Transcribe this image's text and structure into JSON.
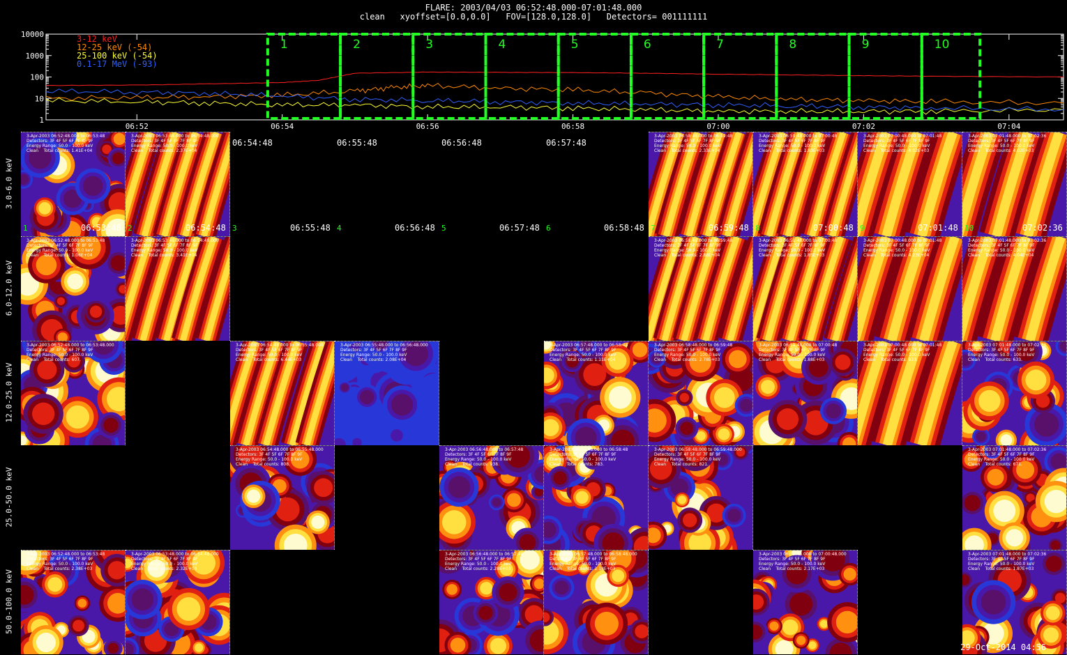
{
  "header": {
    "line1": "FLARE: 2003/04/03 06:52:48.000-07:01:48.000",
    "line2": "clean   xyoffset=[0.0,0.0]   FOV=[128.0,128.0]   Detectors= 001111111"
  },
  "chart_data": [
    {
      "type": "line",
      "yscale": "log",
      "ylim": [
        1,
        10000
      ],
      "y_ticks": [
        "1",
        "10",
        "100",
        "1000",
        "10000"
      ],
      "x_ticks": [
        "06:52",
        "06:54",
        "06:56",
        "06:58",
        "07:00",
        "07:02",
        "07:04"
      ],
      "x_range": [
        "06:50:45",
        "07:04:45"
      ],
      "legend_position": "top-left",
      "series": [
        {
          "name": "3-12 keV",
          "color": "#ff2020",
          "x": [
            "06:50:45",
            "06:52:00",
            "06:53:00",
            "06:54:00",
            "06:54:30",
            "06:55:00",
            "06:56:00",
            "06:57:00",
            "06:58:00",
            "06:59:00",
            "07:00:00",
            "07:01:00",
            "07:02:00",
            "07:03:00",
            "07:04:45"
          ],
          "values": [
            40,
            42,
            48,
            55,
            70,
            150,
            170,
            165,
            160,
            150,
            135,
            125,
            115,
            108,
            100
          ]
        },
        {
          "name": "12-25 keV (-54)",
          "color": "#ff8a00",
          "x": [
            "06:50:45",
            "06:52:00",
            "06:53:00",
            "06:54:00",
            "06:55:00",
            "06:55:30",
            "06:56:00",
            "06:57:00",
            "06:58:00",
            "06:59:00",
            "07:00:00",
            "07:01:00",
            "07:02:00",
            "07:03:00",
            "07:04:45"
          ],
          "values": [
            10,
            11,
            12,
            14,
            22,
            32,
            40,
            30,
            25,
            18,
            12,
            9,
            8,
            7,
            6
          ]
        },
        {
          "name": "25-100 keV (-54)",
          "color": "#ffff30",
          "x": [
            "06:50:45",
            "06:52:00",
            "06:53:00",
            "06:54:00",
            "06:55:00",
            "06:56:00",
            "06:57:00",
            "06:58:00",
            "06:59:00",
            "07:00:00",
            "07:01:00",
            "07:02:00",
            "07:03:00",
            "07:04:45"
          ],
          "values": [
            8,
            7,
            6,
            5,
            5,
            4,
            4,
            3.5,
            3,
            2.5,
            2.5,
            2.5,
            2.5,
            3
          ]
        },
        {
          "name": "0.1-17 MeV (-93)",
          "color": "#3060ff",
          "x": [
            "06:50:45",
            "06:52:00",
            "06:53:00",
            "06:54:00",
            "06:55:00",
            "06:56:00",
            "06:57:00",
            "06:58:00",
            "06:59:00",
            "07:00:00",
            "07:01:00",
            "07:02:00",
            "07:03:00",
            "07:04:45"
          ],
          "values": [
            22,
            20,
            17,
            13,
            9,
            8,
            7,
            6,
            5.5,
            5,
            4.5,
            4,
            3.5,
            3
          ]
        }
      ],
      "intervals": [
        {
          "label": "1",
          "start": "06:53:48",
          "end": "06:54:48"
        },
        {
          "label": "2",
          "start": "06:54:48",
          "end": "06:55:48"
        },
        {
          "label": "3",
          "start": "06:55:48",
          "end": "06:56:48"
        },
        {
          "label": "4",
          "start": "06:56:48",
          "end": "06:57:48"
        },
        {
          "label": "5",
          "start": "06:57:48",
          "end": "06:58:48"
        },
        {
          "label": "6",
          "start": "06:58:48",
          "end": "06:59:48"
        },
        {
          "label": "7",
          "start": "06:59:48",
          "end": "07:00:48"
        },
        {
          "label": "8",
          "start": "07:00:48",
          "end": "07:01:48"
        },
        {
          "label": "9",
          "start": "07:01:48",
          "end": "07:02:48"
        },
        {
          "label": "10",
          "start": "07:02:48",
          "end": "07:03:36"
        }
      ],
      "interval_color": "#22ff22"
    },
    {
      "type": "heatmap",
      "energy_rows": [
        "3.0-6.0 keV",
        "6.0-12.0 keV",
        "12.0-25.0 keV",
        "25.0-50.0 keV",
        "50.0-100.0 keV"
      ],
      "time_columns": [
        "06:53:48",
        "06:54:48",
        "06:55:48",
        "06:56:48",
        "06:57:48",
        "06:58:48",
        "06:59:48",
        "07:00:48",
        "07:01:48",
        "07:02:36"
      ],
      "column_numbers": [
        "1",
        "2",
        "3",
        "4",
        "5",
        "6",
        "7",
        "8",
        "9",
        "10"
      ],
      "top_timestamps": [
        "06:54:48",
        "06:55:48",
        "06:56:48",
        "06:57:48"
      ],
      "header_template": {
        "detectors": "Detectors: 3F 4F 5F 6F 7F 8F 9F",
        "energy": "Energy Range: 50.0 - 100.0 keV"
      },
      "images": [
        {
          "row": 0,
          "col": 0,
          "time": "3-Apr-2003 06:52:48.000 to 06:53:48",
          "counts": "Clean    Total counts: 1.41E+04",
          "style": "blob"
        },
        {
          "row": 0,
          "col": 1,
          "time": "3-Apr-2003 06:53:48.000 to 06:54:48.000",
          "counts": "Clean    Total counts: 2.37E+04",
          "style": "stripes"
        },
        {
          "row": 0,
          "col": 6,
          "time": "3-Apr-2003 06:58:48.000 to 06:59:48",
          "counts": "Clean    Total counts: 2.33E+04",
          "style": "stripes"
        },
        {
          "row": 0,
          "col": 7,
          "time": "3-Apr-2003 06:59:48.000 to 07:00:48",
          "counts": "Clean    Total counts: 1.83E+03",
          "style": "stripes"
        },
        {
          "row": 0,
          "col": 8,
          "time": "3-Apr-2003 07:00:48.000 to 07:01:48",
          "counts": "Clean    Total counts: 4.02E+03",
          "style": "bright"
        },
        {
          "row": 0,
          "col": 9,
          "time": "3-Apr-2003 07:01:48.000 to 07:02:36",
          "counts": "Clean    Total counts: 4.02E+03",
          "style": "bright"
        },
        {
          "row": 1,
          "col": 0,
          "time": "3-Apr-2003 06:52:48.000 to 06:53:48",
          "counts": "Clean    Total counts: 1.06E+04",
          "style": "blob"
        },
        {
          "row": 1,
          "col": 1,
          "time": "3-Apr-2003 06:53:48.000 to 06:54:48.000",
          "counts": "Clean    Total counts: 3.41E+04",
          "style": "stripes"
        },
        {
          "row": 1,
          "col": 6,
          "time": "3-Apr-2003 06:58:48.000 to 06:59:48",
          "counts": "Clean    Total counts: 2.88E+04",
          "style": "stripes"
        },
        {
          "row": 1,
          "col": 7,
          "time": "3-Apr-2003 06:59:48.000 to 07:00:48",
          "counts": "Clean    Total counts: 1.85E+03",
          "style": "stripes"
        },
        {
          "row": 1,
          "col": 8,
          "time": "3-Apr-2003 07:00:48.000 to 07:01:48",
          "counts": "Clean    Total counts: 4.23E+04",
          "style": "bright"
        },
        {
          "row": 1,
          "col": 9,
          "time": "3-Apr-2003 07:01:48.000 to 07:02:36",
          "counts": "Clean    Total counts: 4.04E+04",
          "style": "bright"
        },
        {
          "row": 2,
          "col": 0,
          "time": "3-Apr-2003 06:52:48.000 to 06:53:48.000",
          "counts": "Clean    Total counts: 607.",
          "style": "blob"
        },
        {
          "row": 2,
          "col": 2,
          "time": "3-Apr-2003 06:54:48.000 to 06:55:48.000",
          "counts": "Clean    Total counts: 6.44E+03",
          "style": "stripes"
        },
        {
          "row": 2,
          "col": 3,
          "time": "3-Apr-2003 06:55:48.000 to 06:56:48.000",
          "counts": "Clean    Total counts: 2.08E+04",
          "style": "blue"
        },
        {
          "row": 2,
          "col": 5,
          "time": "3-Apr-2003 06:57:48.000 to 06:58:48",
          "counts": "Clean    Total counts: 1.11E+04",
          "style": "blob"
        },
        {
          "row": 2,
          "col": 6,
          "time": "3-Apr-2003 06:58:48.000 to 06:59:48",
          "counts": "Clean    Total counts: 2.78E+03",
          "style": "blob"
        },
        {
          "row": 2,
          "col": 7,
          "time": "3-Apr-2003 06:59:48.000 to 07:00:48",
          "counts": "Clean    Total counts: 1.88E+03",
          "style": "blob"
        },
        {
          "row": 2,
          "col": 8,
          "time": "3-Apr-2003 07:00:48.000 to 07:01:48",
          "counts": "Clean    Total counts: 923.",
          "style": "bright"
        },
        {
          "row": 2,
          "col": 9,
          "time": "3-Apr-2003 07:01:48.000 to 07:02:36",
          "counts": "Clean    Total counts: 633.",
          "style": "blob"
        },
        {
          "row": 3,
          "col": 2,
          "time": "3-Apr-2003 06:54:48.000 to 06:55:48.000",
          "counts": "Clean    Total counts: 808.",
          "style": "blob"
        },
        {
          "row": 3,
          "col": 4,
          "time": "3-Apr-2003 06:56:48.000 to 06:57:48",
          "counts": "Clean    Total counts: 938.",
          "style": "blob"
        },
        {
          "row": 3,
          "col": 5,
          "time": "3-Apr-2003 06:57:48.000 to 06:58:48",
          "counts": "Clean    Total counts: 783.",
          "style": "blob"
        },
        {
          "row": 3,
          "col": 6,
          "time": "3-Apr-2003 06:58:48.000 to 06:59:48.000",
          "counts": "Clean    Total counts: 821.",
          "style": "blob"
        },
        {
          "row": 3,
          "col": 9,
          "time": "3-Apr-2003 07:01:48.000 to 07:02:36",
          "counts": "Clean    Total counts: 671.",
          "style": "blob"
        },
        {
          "row": 4,
          "col": 0,
          "time": "3-Apr-2003 06:52:48.000 to 06:53:48",
          "counts": "Clean    Total counts: 2.38E+03",
          "style": "blob"
        },
        {
          "row": 4,
          "col": 1,
          "time": "3-Apr-2003 06:53:48.000 to 06:54:48.000",
          "counts": "Clean    Total counts: 2.32E+03",
          "style": "blob"
        },
        {
          "row": 4,
          "col": 4,
          "time": "3-Apr-2003 06:56:48.000 to 06:57:48",
          "counts": "Clean    Total counts: 2.28E+03",
          "style": "blob"
        },
        {
          "row": 4,
          "col": 5,
          "time": "3-Apr-2003 06:57:48.000 to 06:58:48.000",
          "counts": "Clean    Total counts: 2.18E+03",
          "style": "blob"
        },
        {
          "row": 4,
          "col": 7,
          "time": "3-Apr-2003 06:59:48.000 to 07:00:48.000",
          "counts": "Clean    Total counts: 2.17E+03",
          "style": "blob"
        },
        {
          "row": 4,
          "col": 9,
          "time": "3-Apr-2003 07:01:48.000 to 07:02:36",
          "counts": "Clean    Total counts: 1.87E+03",
          "style": "blob"
        }
      ]
    }
  ],
  "footer": {
    "date": "29-Oct-2014 04:56"
  }
}
